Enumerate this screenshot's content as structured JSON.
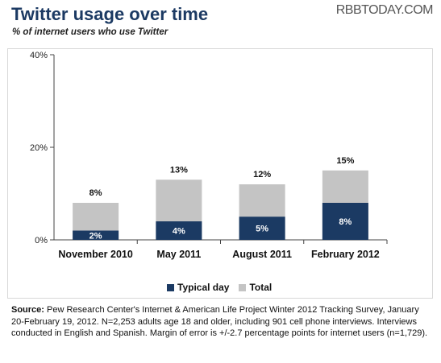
{
  "header": {
    "title": "Twitter usage over time",
    "subtitle": "% of internet users who use Twitter",
    "watermark": "RBBTODAY.COM"
  },
  "chart_data": {
    "type": "bar",
    "stacked": "overlay",
    "categories": [
      "November 2010",
      "May 2011",
      "August 2011",
      "February 2012"
    ],
    "series": [
      {
        "name": "Typical day",
        "values": [
          2,
          4,
          5,
          8
        ],
        "labels": [
          "2%",
          "4%",
          "5%",
          "8%"
        ],
        "color": "#1b3a63"
      },
      {
        "name": "Total",
        "values": [
          8,
          13,
          12,
          15
        ],
        "labels": [
          "8%",
          "13%",
          "12%",
          "15%"
        ],
        "color": "#c4c4c4"
      }
    ],
    "ylim": [
      0,
      40
    ],
    "yticks": [
      0,
      20,
      40
    ],
    "ytick_labels": [
      "0%",
      "20%",
      "40%"
    ],
    "xlabel": "",
    "ylabel": "",
    "legend_position": "bottom"
  },
  "source": {
    "label": "Source:",
    "text": "Pew Research Center's Internet & American Life Project Winter 2012 Tracking Survey, January 20-February 19, 2012. N=2,253 adults age 18 and older, including 901 cell phone interviews. Interviews conducted in English and Spanish. Margin of error is +/-2.7 percentage points for internet users (n=1,729)."
  }
}
